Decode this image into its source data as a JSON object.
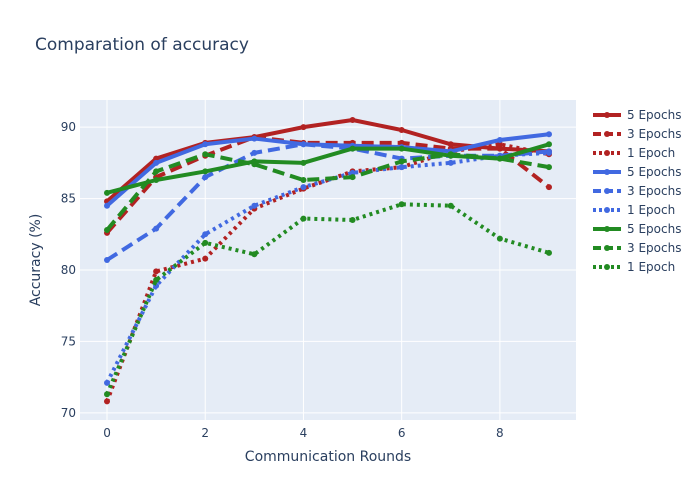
{
  "chart_data": {
    "type": "line",
    "title": "Comparation of accuracy",
    "xlabel": "Communication Rounds",
    "ylabel": "Accuracy (%)",
    "xlim": [
      -0.55,
      9.55
    ],
    "ylim": [
      69.5,
      91.9
    ],
    "x_ticks": [
      0,
      2,
      4,
      6,
      8
    ],
    "y_ticks": [
      70,
      75,
      80,
      85,
      90
    ],
    "grid": true,
    "legend_position": "right",
    "x": [
      0,
      1,
      2,
      3,
      4,
      5,
      6,
      7,
      8,
      9
    ],
    "series": [
      {
        "name": "5 Epochs",
        "color": "#b22222",
        "dash": "solid",
        "values": [
          84.8,
          87.8,
          88.9,
          89.3,
          90.0,
          90.5,
          89.8,
          88.8,
          88.5,
          88.3
        ]
      },
      {
        "name": "3 Epochs",
        "color": "#b22222",
        "dash": "dash",
        "values": [
          82.6,
          86.5,
          88.0,
          89.3,
          88.9,
          88.9,
          88.9,
          88.5,
          88.5,
          85.8
        ]
      },
      {
        "name": "1 Epoch",
        "color": "#b22222",
        "dash": "dot",
        "values": [
          70.8,
          79.9,
          80.8,
          84.3,
          85.7,
          86.9,
          87.2,
          88.3,
          88.8,
          88.1
        ]
      },
      {
        "name": "5 Epochs",
        "color": "#4169e1",
        "dash": "solid",
        "values": [
          84.5,
          87.5,
          88.8,
          89.2,
          88.8,
          88.7,
          88.6,
          88.3,
          89.1,
          89.5
        ]
      },
      {
        "name": "3 Epochs",
        "color": "#4169e1",
        "dash": "dash",
        "values": [
          80.7,
          82.9,
          86.5,
          88.2,
          88.8,
          88.5,
          87.8,
          88.0,
          88.0,
          88.3
        ]
      },
      {
        "name": "1 Epoch",
        "color": "#4169e1",
        "dash": "dot",
        "values": [
          72.1,
          78.9,
          82.5,
          84.5,
          85.8,
          86.8,
          87.2,
          87.5,
          88.0,
          88.2
        ]
      },
      {
        "name": "5 Epochs",
        "color": "#228b22",
        "dash": "solid",
        "values": [
          85.4,
          86.3,
          86.9,
          87.6,
          87.5,
          88.5,
          88.5,
          88.0,
          87.8,
          88.8
        ]
      },
      {
        "name": "3 Epochs",
        "color": "#228b22",
        "dash": "dash",
        "values": [
          82.8,
          86.9,
          88.1,
          87.4,
          86.3,
          86.5,
          87.6,
          88.1,
          87.8,
          87.2
        ]
      },
      {
        "name": "1 Epoch",
        "color": "#228b22",
        "dash": "dot",
        "values": [
          71.3,
          79.3,
          81.9,
          81.1,
          83.6,
          83.5,
          84.6,
          84.5,
          82.2,
          81.2
        ]
      }
    ]
  }
}
